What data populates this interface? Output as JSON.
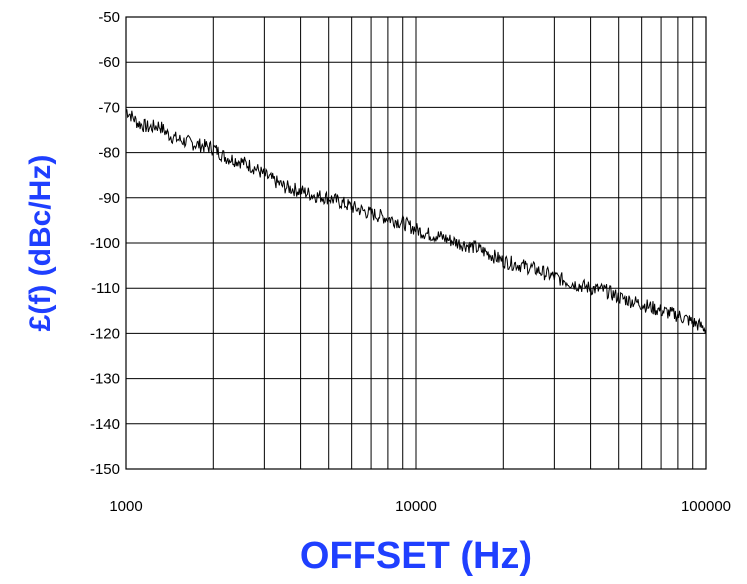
{
  "chart_data": {
    "type": "line",
    "xscale": "log",
    "xlim": [
      1000,
      100000
    ],
    "ylim": [
      -150,
      -50
    ],
    "grid": true,
    "xlabel": "OFFSET (Hz)",
    "ylabel": "£(f) (dBc/Hz)",
    "x_ticks": [
      "1000",
      "10000",
      "100000"
    ],
    "y_ticks": [
      "-50",
      "-60",
      "-70",
      "-80",
      "-90",
      "-100",
      "-110",
      "-120",
      "-130",
      "-140",
      "-150"
    ],
    "axis_title_color": "#1f3fff",
    "series": [
      {
        "color": "#000000",
        "x": [
          1000,
          1100,
          1200,
          1300,
          1400,
          1500,
          1700,
          2000,
          2200,
          2500,
          2800,
          3000,
          3500,
          4000,
          4500,
          5000,
          5500,
          6000,
          7000,
          8000,
          9000,
          10000,
          11000,
          12000,
          14000,
          16000,
          18000,
          20000,
          25000,
          30000,
          35000,
          40000,
          45000,
          50000,
          60000,
          70000,
          80000,
          90000,
          100000
        ],
        "values": [
          -70.5,
          -73.5,
          -74.5,
          -74,
          -76,
          -77,
          -78,
          -79,
          -81,
          -82,
          -83.5,
          -85,
          -87.5,
          -88.5,
          -89.5,
          -90,
          -91,
          -92,
          -93.5,
          -94.5,
          -95.5,
          -97,
          -98,
          -98.5,
          -100,
          -101,
          -102.5,
          -104,
          -105.5,
          -107.5,
          -109,
          -110,
          -110.5,
          -112,
          -113.5,
          -115,
          -116,
          -117.5,
          -119
        ]
      }
    ]
  }
}
